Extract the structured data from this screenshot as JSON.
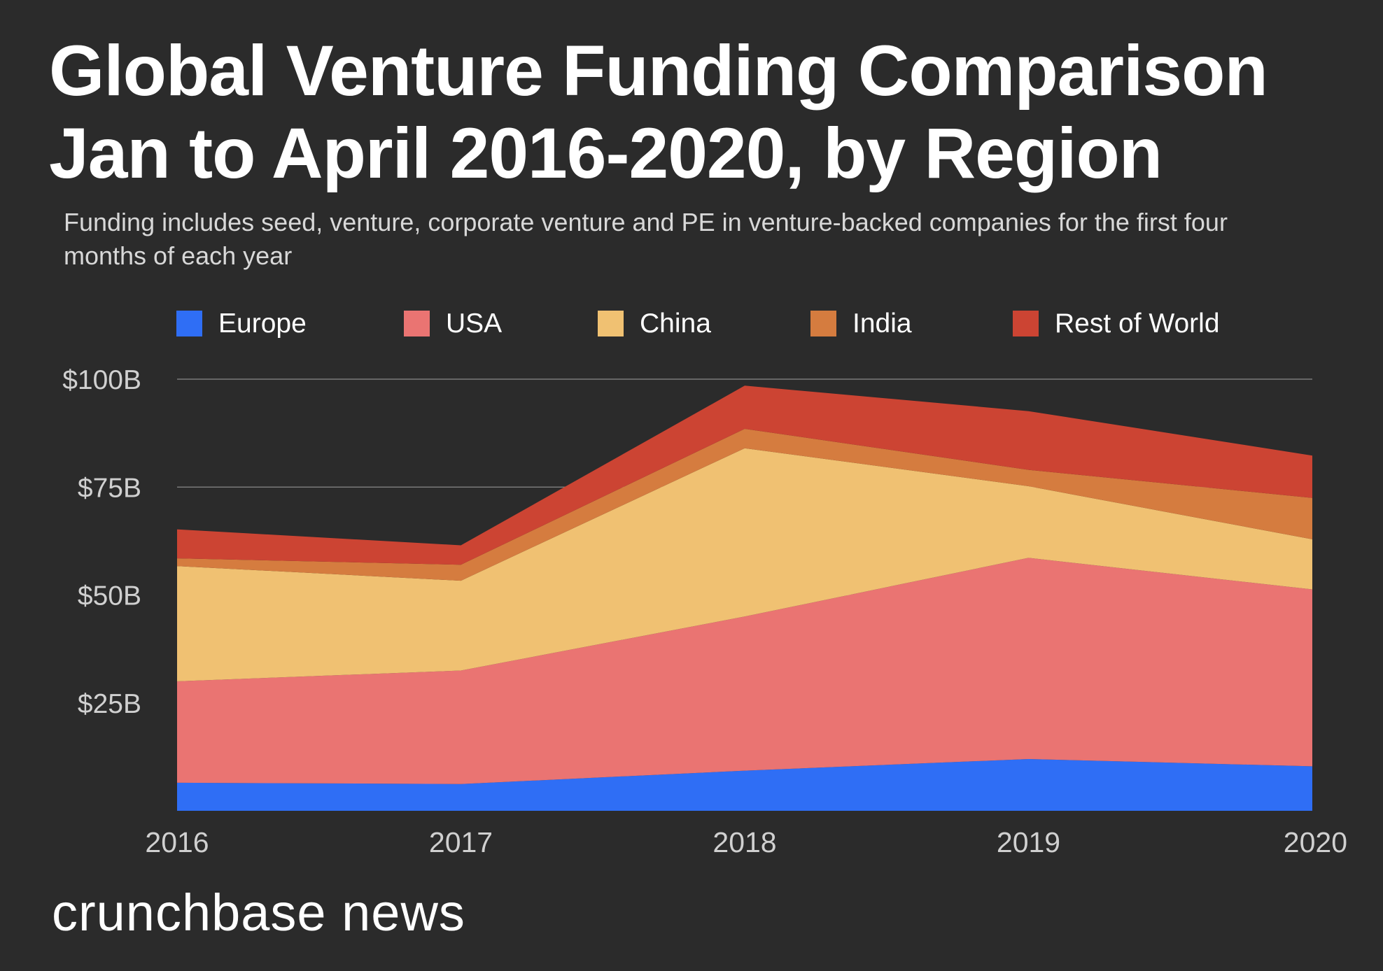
{
  "title_line1": "Global Venture Funding Comparison",
  "title_line2": "Jan to April 2016-2020, by Region",
  "subtitle_line1": "Funding includes seed, venture, corporate venture and PE in venture-backed companies for the first four",
  "subtitle_line2": "months of each year",
  "brand": "crunchbase news",
  "colors": {
    "background": "#2b2b2b",
    "gridline": "#8a8a8a",
    "tick_text": "#d0d0d0",
    "legend_text": "#ffffff"
  },
  "chart_data": {
    "type": "area",
    "stacked": true,
    "x": [
      "2016",
      "2017",
      "2018",
      "2019",
      "2020"
    ],
    "ylim": [
      0,
      100
    ],
    "yticks": [
      {
        "value": 25,
        "label": "$25B"
      },
      {
        "value": 50,
        "label": "$50B"
      },
      {
        "value": 75,
        "label": "$75B"
      },
      {
        "value": 100,
        "label": "$100B"
      }
    ],
    "grid": true,
    "legend_position": "top",
    "series": [
      {
        "name": "Europe",
        "color": "#2f6ef5",
        "values": [
          6.5,
          6.2,
          9.3,
          12.0,
          10.3
        ]
      },
      {
        "name": "USA",
        "color": "#ea7472",
        "values": [
          23.5,
          26.3,
          35.7,
          46.6,
          41.0
        ]
      },
      {
        "name": "China",
        "color": "#f0c172",
        "values": [
          26.7,
          20.8,
          39.0,
          16.6,
          11.6
        ]
      },
      {
        "name": "India",
        "color": "#d57c3f",
        "values": [
          1.8,
          3.7,
          4.5,
          3.8,
          9.6
        ]
      },
      {
        "name": "Rest of World",
        "color": "#cc4433",
        "values": [
          6.7,
          4.5,
          10.0,
          13.6,
          9.8
        ]
      }
    ]
  }
}
